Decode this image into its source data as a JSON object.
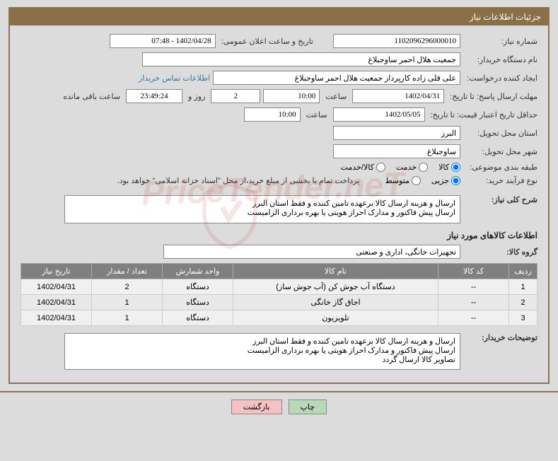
{
  "titleBar": "جزئیات اطلاعات نیاز",
  "labels": {
    "needNumber": "شماره نیاز:",
    "announceDateTime": "تاریخ و ساعت اعلان عمومی:",
    "buyerOrg": "نام دستگاه خریدار:",
    "requester": "ایجاد کننده درخواست:",
    "buyerContact": "اطلاعات تماس خریدار",
    "responseDeadline": "مهلت ارسال پاسخ: تا تاریخ:",
    "hour": "ساعت",
    "daysAnd": "روز و",
    "remaining": "ساعت باقی مانده",
    "minValidity": "حداقل تاریخ اعتبار قیمت: تا تاریخ:",
    "deliveryProvince": "استان محل تحویل:",
    "deliveryCity": "شهر محل تحویل:",
    "category": "طبقه بندی موضوعی:",
    "purchaseType": "نوع فرآیند خرید:",
    "overallDesc": "شرح کلی نیاز:",
    "itemsInfo": "اطلاعات کالاهای مورد نیاز",
    "productGroup": "گروه کالا:",
    "buyerNotes": "توضیحات خریدار:"
  },
  "fields": {
    "needNumber": "1102096296000010",
    "announceDateTime": "1402/04/28 - 07:48",
    "buyerOrg": "جمعیت هلال احمر ساوجبلاغ",
    "requester": "علی قلی زاده کارپرداز جمعیت هلال احمر ساوجبلاغ",
    "responseDate": "1402/04/31",
    "responseTime": "10:00",
    "daysLeft": "2",
    "countdown": "23:49:24",
    "validityDate": "1402/05/05",
    "validityTime": "10:00",
    "province": "البرز",
    "city": "ساوجبلاغ",
    "paymentNote": "پرداخت تمام یا بخشی از مبلغ خرید،از محل \"اسناد خزانه اسلامی\" خواهد بود.",
    "overallDesc": "ارسال و هزینه ارسال کالا برعهده تامین کننده و فقط استان البرز\nارسال پیش فاکتور و مدارک احراز هویتی یا بهره برداری الزامیست",
    "productGroup": "تجهیزات خانگی، اداری و صنعتی",
    "buyerNotes": "ارسال و هزینه ارسال کالا برعهده تامین کننده و فقط استان البرز\nارسال پیش فاکتور و مدارک احراز هویتی یا بهره برداری الزامیست\nتصاویر کالا ارسال گردد"
  },
  "radios": {
    "cat_goods": "کالا",
    "cat_service": "خدمت",
    "cat_both": "کالا/خدمت",
    "pt_partial": "جزیی",
    "pt_medium": "متوسط"
  },
  "table": {
    "headers": [
      "ردیف",
      "کد کالا",
      "نام کالا",
      "واحد شمارش",
      "تعداد / مقدار",
      "تاریخ نیاز"
    ],
    "rows": [
      [
        "1",
        "--",
        "دستگاه آب جوش کن (آب جوش ساز)",
        "دستگاه",
        "2",
        "1402/04/31"
      ],
      [
        "2",
        "--",
        "اجاق گاز خانگی",
        "دستگاه",
        "1",
        "1402/04/31"
      ],
      [
        "3",
        "--",
        "تلویزیون",
        "دستگاه",
        "1",
        "1402/04/31"
      ]
    ]
  },
  "buttons": {
    "print": "چاپ",
    "back": "بازگشت"
  },
  "colors": {
    "frameBorder": "#8b7355",
    "titleBg": "#8b6f47",
    "tableHeaderBg": "#808080",
    "btnPrintBg": "#b8d8b8",
    "btnBackBg": "#f4c2c2"
  }
}
